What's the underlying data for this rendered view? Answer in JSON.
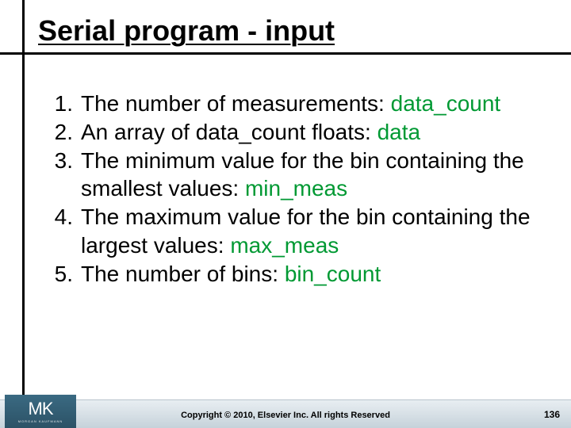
{
  "title": "Serial program - input",
  "items": [
    {
      "num": "1.",
      "text": "The number of measurements: ",
      "var": "data_count"
    },
    {
      "num": "2.",
      "text": "An array of data_count floats: ",
      "var": "data"
    },
    {
      "num": "3.",
      "text": "The minimum value for the bin containing the smallest values: ",
      "var": "min_meas"
    },
    {
      "num": "4.",
      "text": "The maximum value for the bin containing the largest values: ",
      "var": "max_meas"
    },
    {
      "num": "5.",
      "text": "The number of bins: ",
      "var": "bin_count"
    }
  ],
  "logo": {
    "main": "MK",
    "sub": "MORGAN KAUFMANN"
  },
  "copyright": "Copyright © 2010, Elsevier Inc. All rights Reserved",
  "pagenum": "136",
  "colors": {
    "var": "#009933"
  }
}
